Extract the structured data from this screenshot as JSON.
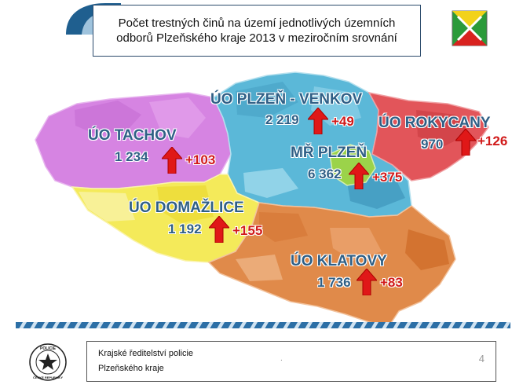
{
  "title": {
    "line1": "Počet trestných činů na území jednotlivých územních",
    "line2": "odborů Plzeňského kraje  2013 v meziročním srovnání"
  },
  "regions": [
    {
      "name": "ÚO PLZEŇ - VENKOV",
      "count": "2 219",
      "delta": "+49",
      "color": "#5bb8d8"
    },
    {
      "name": "ÚO ROKYCANY",
      "count": "970",
      "delta": "+126",
      "color": "#e2555a"
    },
    {
      "name": "ÚO TACHOV",
      "count": "1 234",
      "delta": "+103",
      "color": "#d684e2"
    },
    {
      "name": "MŘ PLZEŇ",
      "count": "6 362",
      "delta": "+375",
      "color": "#9bd34a"
    },
    {
      "name": "ÚO DOMAŽLICE",
      "count": "1 192",
      "delta": "+155",
      "color": "#f4ea5a"
    },
    {
      "name": "ÚO KLATOVY",
      "count": "1 736",
      "delta": "+83",
      "color": "#e08a4a"
    }
  ],
  "footer": {
    "line1": "Krajské ředitelství policie",
    "line2": "Plzeňského kraje",
    "dot": ".",
    "page": "4"
  },
  "emblems": {
    "police_text_top": "POLICIE",
    "police_text_bottom": "ČESKÉ REPUBLIKY"
  }
}
